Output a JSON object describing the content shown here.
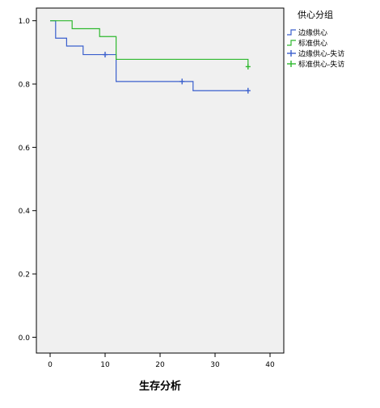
{
  "chart_data": {
    "type": "line",
    "title": "",
    "xlabel": "生存分析",
    "ylabel": "",
    "xlim": [
      -2.5,
      42.5
    ],
    "ylim": [
      -0.05,
      1.04
    ],
    "x_ticks": [
      0,
      10,
      20,
      30,
      40
    ],
    "x_tick_labels": [
      "0",
      "10",
      "20",
      "30",
      "40"
    ],
    "y_ticks": [
      0.0,
      0.2,
      0.4,
      0.6,
      0.8,
      1.0
    ],
    "y_tick_labels": [
      "0.0",
      "0.2",
      "0.4",
      "0.6",
      "0.8",
      "1.0"
    ],
    "grid": false,
    "legend": {
      "title": "供心分组",
      "placement": "right",
      "entries": [
        {
          "label": "边缘供心",
          "kind": "step",
          "color": "#3a5fcd"
        },
        {
          "label": "标准供心",
          "kind": "step",
          "color": "#2eb82e"
        },
        {
          "label": "边缘供心-失访",
          "kind": "censor",
          "color": "#3a5fcd"
        },
        {
          "label": "标准供心-失访",
          "kind": "censor",
          "color": "#2eb82e"
        }
      ]
    },
    "series": [
      {
        "name": "边缘供心",
        "color": "#3a5fcd",
        "steps": [
          [
            0,
            1.0
          ],
          [
            1,
            0.945
          ],
          [
            3,
            0.92
          ],
          [
            6,
            0.893
          ],
          [
            12,
            0.808
          ],
          [
            26,
            0.779
          ],
          [
            36,
            0.779
          ]
        ],
        "censored": [
          [
            10,
            0.893
          ],
          [
            24,
            0.808
          ],
          [
            36,
            0.779
          ]
        ]
      },
      {
        "name": "标准供心",
        "color": "#2eb82e",
        "steps": [
          [
            0,
            1.0
          ],
          [
            4,
            0.975
          ],
          [
            9,
            0.95
          ],
          [
            12,
            0.878
          ],
          [
            36,
            0.878
          ],
          [
            36,
            0.855
          ]
        ],
        "censored": [
          [
            36,
            0.855
          ]
        ]
      }
    ]
  }
}
